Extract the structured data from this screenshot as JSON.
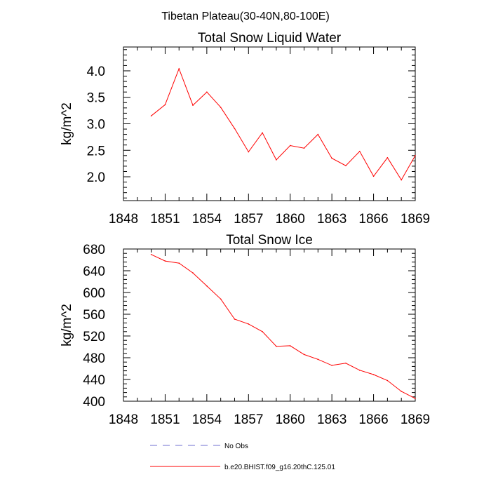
{
  "suptitle": "Tibetan Plateau(30-40N,80-100E)",
  "colors": {
    "model": "#ff0000",
    "obs": "#6f6fd0",
    "axis": "#000000"
  },
  "chart_data": [
    {
      "type": "line",
      "title": "Total Snow Liquid Water",
      "ylabel": "kg/m^2",
      "xlabel": "",
      "xlim": [
        1848,
        1869
      ],
      "ylim": [
        1.55,
        4.45
      ],
      "xticks": [
        1848,
        1851,
        1854,
        1857,
        1860,
        1863,
        1866,
        1869
      ],
      "yticks": [
        2.0,
        2.5,
        3.0,
        3.5,
        4.0
      ],
      "ytick_labels": [
        "2.0",
        "2.5",
        "3.0",
        "3.5",
        "4.0"
      ],
      "grid": false,
      "series": [
        {
          "name": "b.e20.BHIST.f09_g16.20thC.125.01",
          "x": [
            1850,
            1851,
            1852,
            1853,
            1854,
            1855,
            1856,
            1857,
            1858,
            1859,
            1860,
            1861,
            1862,
            1863,
            1864,
            1865,
            1866,
            1867,
            1868,
            1869
          ],
          "values": [
            3.15,
            3.36,
            4.04,
            3.35,
            3.6,
            3.31,
            2.91,
            2.47,
            2.83,
            2.32,
            2.59,
            2.54,
            2.8,
            2.35,
            2.21,
            2.48,
            2.01,
            2.36,
            1.94,
            2.4
          ]
        }
      ]
    },
    {
      "type": "line",
      "title": "Total Snow Ice",
      "ylabel": "kg/m^2",
      "xlabel": "",
      "xlim": [
        1848,
        1869
      ],
      "ylim": [
        400,
        680
      ],
      "xticks": [
        1848,
        1851,
        1854,
        1857,
        1860,
        1863,
        1866,
        1869
      ],
      "yticks": [
        400,
        440,
        480,
        520,
        560,
        600,
        640,
        680
      ],
      "ytick_labels": [
        "400",
        "440",
        "480",
        "520",
        "560",
        "600",
        "640",
        "680"
      ],
      "grid": false,
      "series": [
        {
          "name": "b.e20.BHIST.f09_g16.20thC.125.01",
          "x": [
            1850,
            1851,
            1852,
            1853,
            1854,
            1855,
            1856,
            1857,
            1858,
            1859,
            1860,
            1861,
            1862,
            1863,
            1864,
            1865,
            1866,
            1867,
            1868,
            1869
          ],
          "values": [
            670,
            658,
            654,
            636,
            612,
            588,
            551,
            542,
            528,
            501,
            502,
            486,
            477,
            466,
            470,
            457,
            449,
            438,
            418,
            405
          ]
        }
      ]
    }
  ],
  "legend": [
    {
      "label": "No Obs",
      "style": "dashed",
      "color": "#6f6fd0"
    },
    {
      "label": "b.e20.BHIST.f09_g16.20thC.125.01",
      "style": "solid",
      "color": "#ff0000"
    }
  ]
}
